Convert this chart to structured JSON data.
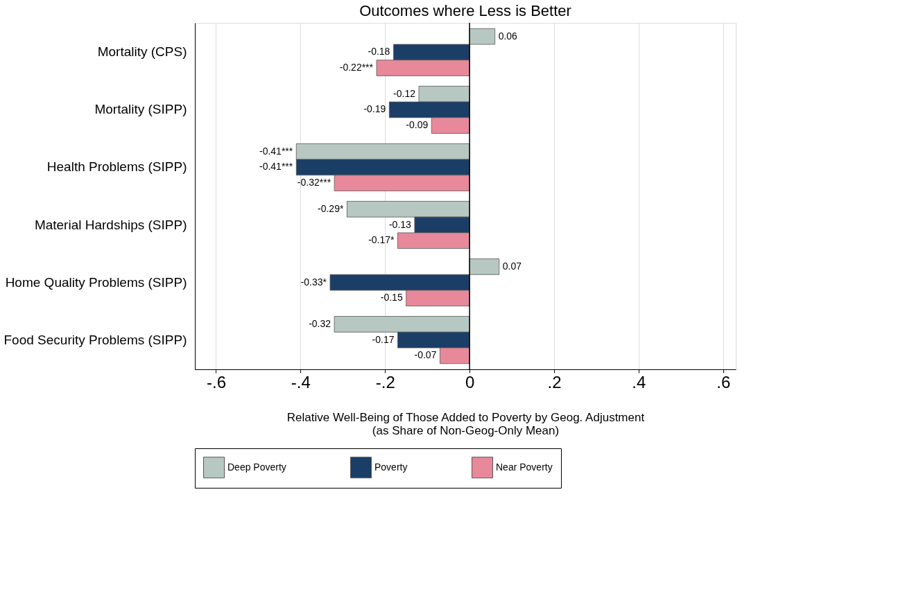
{
  "chart_data": {
    "type": "bar",
    "orientation": "horizontal",
    "title": "Outcomes where Less is Better",
    "xlabel": "Relative Well-Being of Those Added to Poverty by Geog. Adjustment\n(as Share of Non-Geog-Only Mean)",
    "categories": [
      "Mortality (CPS)",
      "Mortality (SIPP)",
      "Health Problems (SIPP)",
      "Material Hardships (SIPP)",
      "Home Quality Problems (SIPP)",
      "Food Security Problems (SIPP)"
    ],
    "series": [
      {
        "name": "Deep Poverty",
        "color": "#b7c8c3",
        "values": [
          0.06,
          -0.12,
          -0.41,
          -0.29,
          0.07,
          -0.32
        ],
        "value_labels": [
          "0.06",
          "-0.12",
          "-0.41***",
          "-0.29*",
          "0.07",
          "-0.32"
        ]
      },
      {
        "name": "Poverty",
        "color": "#1b3e66",
        "values": [
          -0.18,
          -0.19,
          -0.41,
          -0.13,
          -0.33,
          -0.17
        ],
        "value_labels": [
          "-0.18",
          "-0.19",
          "-0.41***",
          "-0.13",
          "-0.33*",
          "-0.17"
        ]
      },
      {
        "name": "Near Poverty",
        "color": "#e8899b",
        "values": [
          -0.22,
          -0.09,
          -0.32,
          -0.17,
          -0.15,
          -0.07
        ],
        "value_labels": [
          "-0.22***",
          "-0.09",
          "-0.32***",
          "-0.17*",
          "-0.15",
          "-0.07"
        ]
      }
    ],
    "xlim": [
      -0.65,
      0.63
    ],
    "xticks": [
      {
        "value": -0.6,
        "label": "-.6"
      },
      {
        "value": -0.4,
        "label": "-.4"
      },
      {
        "value": -0.2,
        "label": "-.2"
      },
      0,
      {
        "value": 0.2,
        "label": ".2"
      },
      {
        "value": 0.4,
        "label": ".4"
      },
      {
        "value": 0.6,
        "label": ".6"
      }
    ],
    "ref_lines": [
      {
        "axis": "x",
        "value": 0,
        "label": null,
        "color": "#000000"
      }
    ],
    "grid": "x",
    "legend": "bottom"
  }
}
